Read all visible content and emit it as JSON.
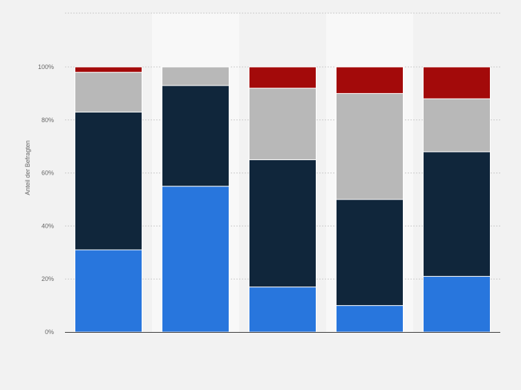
{
  "chart_data": {
    "type": "bar",
    "stacked": true,
    "categories": [
      "",
      "",
      "",
      "",
      ""
    ],
    "series": [
      {
        "values": [
          31,
          55,
          17,
          10,
          21
        ],
        "color": "#2876dd"
      },
      {
        "values": [
          52,
          38,
          48,
          40,
          47
        ],
        "color": "#10263b"
      },
      {
        "values": [
          15,
          7,
          27,
          40,
          20
        ],
        "color": "#b8b8b8"
      },
      {
        "values": [
          2,
          0,
          8,
          10,
          12
        ],
        "color": "#a30a0a"
      }
    ],
    "ylabel": "Anteil der Befragten",
    "ylim": [
      0,
      100
    ],
    "yticks": [
      "0%",
      "20%",
      "40%",
      "60%",
      "80%",
      "100%"
    ],
    "grid": true,
    "highlighted_columns": [
      1,
      3
    ]
  }
}
